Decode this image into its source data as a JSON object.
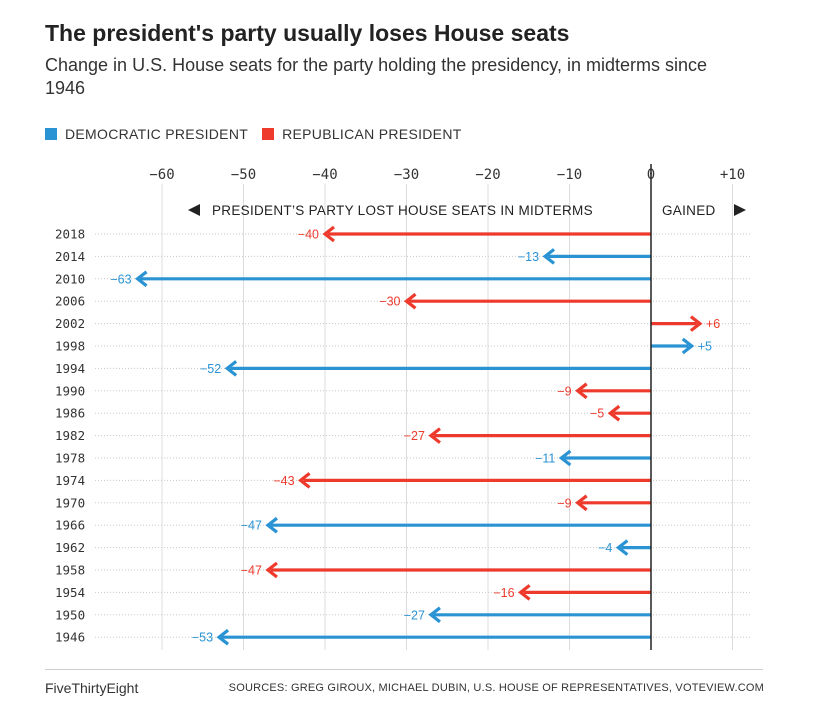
{
  "title": "The president's party usually loses House seats",
  "subtitle": "Change in U.S. House seats for the party holding the presidency, in midterms since 1946",
  "legend": {
    "democratic": "DEMOCRATIC PRESIDENT",
    "republican": "REPUBLICAN PRESIDENT"
  },
  "colors": {
    "democratic": "#2a93d4",
    "republican": "#ee3a2d"
  },
  "annotations": {
    "lost": "PRESIDENT’S PARTY LOST HOUSE SEATS IN MIDTERMS",
    "gained": "GAINED"
  },
  "footer": {
    "brand": "FiveThirtyEight",
    "source": "SOURCES: GREG GIROUX, MICHAEL DUBIN, U.S. HOUSE OF REPRESENTATIVES, VOTEVIEW.COM"
  },
  "chart_data": {
    "type": "bar",
    "orientation": "horizontal",
    "title": "The president's party usually loses House seats",
    "subtitle": "Change in U.S. House seats for the party holding the presidency, in midterms since 1946",
    "xlim": [
      -62,
      12
    ],
    "xticks": [
      -60,
      -50,
      -40,
      -30,
      -20,
      -10,
      0,
      10
    ],
    "xtick_labels": [
      "−60",
      "−50",
      "−40",
      "−30",
      "−20",
      "−10",
      "0",
      "+10"
    ],
    "grid": true,
    "legend_placement": "top-left",
    "categories": [
      "2018",
      "2014",
      "2010",
      "2006",
      "2002",
      "1998",
      "1994",
      "1990",
      "1986",
      "1982",
      "1978",
      "1974",
      "1970",
      "1966",
      "1962",
      "1958",
      "1954",
      "1950",
      "1946"
    ],
    "values": [
      -40,
      -13,
      -63,
      -30,
      6,
      5,
      -52,
      -9,
      -5,
      -27,
      -11,
      -43,
      -9,
      -47,
      -4,
      -47,
      -16,
      -27,
      -53
    ],
    "value_labels": [
      "−40",
      "−13",
      "−63",
      "−30",
      "+6",
      "+5",
      "−52",
      "−9",
      "−5",
      "−27",
      "−11",
      "−43",
      "−9",
      "−47",
      "−4",
      "−47",
      "−16",
      "−27",
      "−53"
    ],
    "party": [
      "R",
      "D",
      "D",
      "R",
      "R",
      "D",
      "D",
      "R",
      "R",
      "R",
      "D",
      "R",
      "R",
      "D",
      "D",
      "R",
      "R",
      "D",
      "D"
    ]
  }
}
